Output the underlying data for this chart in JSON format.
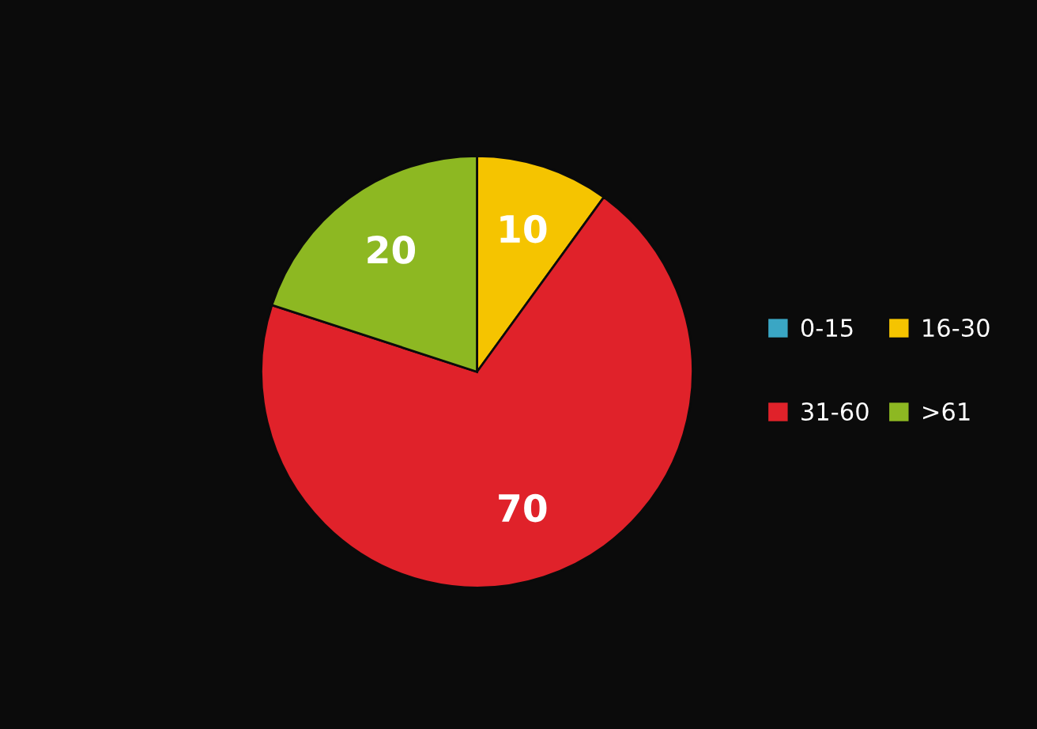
{
  "chart_data": {
    "type": "pie",
    "categories": [
      "0-15",
      "16-30",
      "31-60",
      ">61"
    ],
    "values": [
      0,
      10,
      70,
      20
    ],
    "colors": [
      "#3aa6c4",
      "#f5c400",
      "#e0222a",
      "#8db822"
    ],
    "data_labels": true,
    "legend": "right"
  }
}
